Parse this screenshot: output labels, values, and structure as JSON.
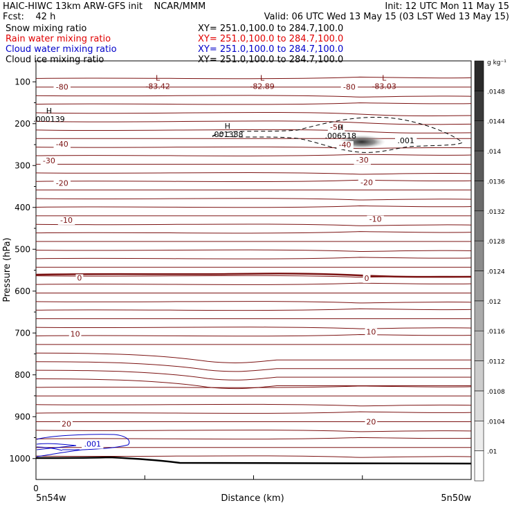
{
  "header": {
    "line1_left": "HAIC-HIWC 13km ARW-GFS init    NCAR/MMM",
    "line1_right": "Init: 12 UTC Mon 11 May 15",
    "line2_left": "Fcst:    42 h",
    "line2_right": "Valid: 06 UTC Wed 13 May 15 (03 LST Wed 13 May 15)",
    "fields": [
      {
        "name": "Snow mixing ratio",
        "xy": "XY= 251.0,100.0 to 284.7,100.0",
        "color": "#000000"
      },
      {
        "name": "Rain water mixing ratio",
        "xy": "XY= 251.0,100.0 to 284.7,100.0",
        "color": "#e00000"
      },
      {
        "name": "Cloud water mixing ratio",
        "xy": "XY= 251.0,100.0 to 284.7,100.0",
        "color": "#0000c8"
      },
      {
        "name": "Cloud ice mixing ratio",
        "xy": "XY= 251.0,100.0 to 284.7,100.0",
        "color": "#000000"
      }
    ]
  },
  "chart_data": {
    "type": "contour-cross-section",
    "ylabel": "Pressure (hPa)",
    "xlabel": "Distance (km)",
    "x_start_label": "5n54w",
    "x_end_label": "5n50w",
    "x_zero_label": "0",
    "ylim": [
      1050,
      50
    ],
    "y_ticks": [
      100,
      200,
      300,
      400,
      500,
      600,
      700,
      800,
      900,
      1000
    ],
    "colorbar": {
      "unit": "g kg⁻¹",
      "levels": [
        ".01",
        ".0104",
        ".0108",
        ".0112",
        ".0116",
        ".012",
        ".0124",
        ".0128",
        ".0132",
        ".0136",
        ".014",
        ".0144",
        ".0148"
      ]
    },
    "temperature_labels": [
      {
        "text": "-80",
        "x": 0.06,
        "p": 112
      },
      {
        "text": "-80",
        "x": 0.72,
        "p": 112
      },
      {
        "text": "-50",
        "x": 0.69,
        "p": 208
      },
      {
        "text": "-40",
        "x": 0.06,
        "p": 248
      },
      {
        "text": "-40",
        "x": 0.71,
        "p": 250
      },
      {
        "text": "-30",
        "x": 0.03,
        "p": 288
      },
      {
        "text": "-30",
        "x": 0.75,
        "p": 286
      },
      {
        "text": "-20",
        "x": 0.06,
        "p": 342
      },
      {
        "text": "-20",
        "x": 0.76,
        "p": 340
      },
      {
        "text": "-10",
        "x": 0.07,
        "p": 430
      },
      {
        "text": "-10",
        "x": 0.78,
        "p": 428
      },
      {
        "text": "0",
        "x": 0.1,
        "p": 568
      },
      {
        "text": "0",
        "x": 0.76,
        "p": 569
      },
      {
        "text": "10",
        "x": 0.09,
        "p": 702
      },
      {
        "text": "10",
        "x": 0.77,
        "p": 697
      },
      {
        "text": "20",
        "x": 0.07,
        "p": 917
      },
      {
        "text": "20",
        "x": 0.77,
        "p": 912
      }
    ],
    "extrema": [
      {
        "type": "L",
        "value": "-83.42",
        "x": 0.28,
        "p": 97
      },
      {
        "type": "L",
        "value": "-82.89",
        "x": 0.52,
        "p": 97
      },
      {
        "type": "L",
        "value": "-83.03",
        "x": 0.8,
        "p": 97
      },
      {
        "type": "H",
        "value": ".000139",
        "x": 0.03,
        "p": 176
      },
      {
        "type": "H",
        "value": ".001388",
        "x": 0.44,
        "p": 212
      },
      {
        "type": "H",
        "value": ".006518",
        "x": 0.7,
        "p": 215
      }
    ],
    "ice_contour_labels": [
      {
        "text": ".001",
        "x": 0.85,
        "p": 240
      }
    ],
    "cloud_water_labels": [
      {
        "text": ".001",
        "x": 0.13,
        "p": 965
      }
    ]
  }
}
